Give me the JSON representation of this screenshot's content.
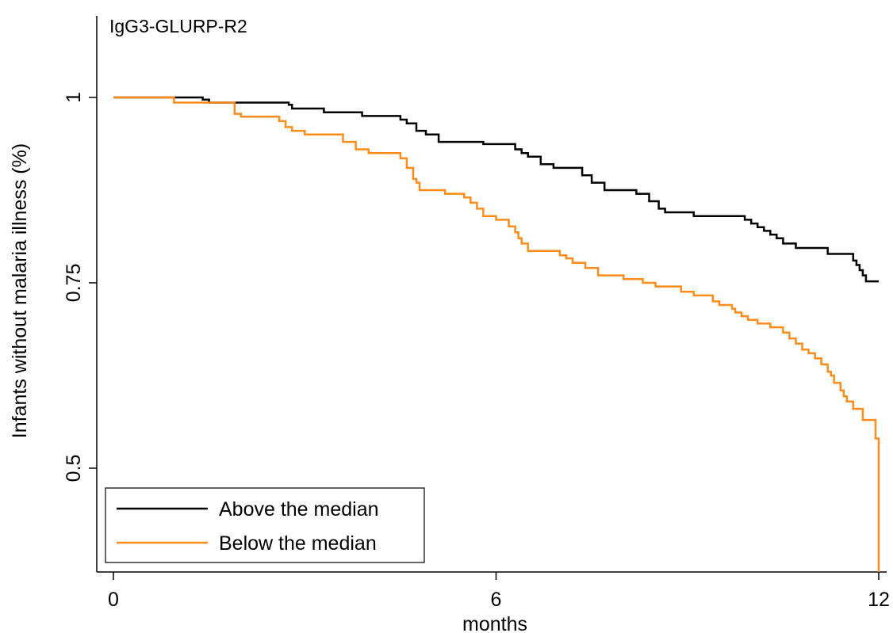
{
  "chart_data": {
    "type": "line",
    "step": true,
    "title": "IgG3-GLURP-R2",
    "xlabel": "months",
    "ylabel": "Infants without malaria illness (%)",
    "xlim": [
      0,
      12
    ],
    "ylim": [
      0.36,
      1.11
    ],
    "xticks": [
      0,
      6,
      12
    ],
    "xtick_labels": [
      "0",
      "6",
      "12"
    ],
    "yticks": [
      0.5,
      0.75,
      1
    ],
    "ytick_labels": [
      "0.5",
      "0.75",
      "1"
    ],
    "grid": false,
    "legend_position": "bottom-left",
    "series": [
      {
        "name": "Above the median",
        "color": "#000000",
        "x": [
          0,
          1.4,
          1.5,
          2.75,
          2.8,
          3.3,
          3.9,
          4.5,
          4.6,
          4.75,
          4.9,
          5.1,
          5.8,
          6.3,
          6.4,
          6.5,
          6.7,
          6.9,
          7.35,
          7.5,
          7.7,
          8.2,
          8.4,
          8.55,
          8.65,
          9.1,
          9.9,
          10.0,
          10.1,
          10.2,
          10.3,
          10.4,
          10.5,
          10.7,
          11.2,
          11.6,
          11.65,
          11.7,
          11.75,
          11.8,
          12.0
        ],
        "y": [
          1.0,
          0.997,
          0.993,
          0.99,
          0.985,
          0.98,
          0.975,
          0.97,
          0.965,
          0.955,
          0.95,
          0.94,
          0.937,
          0.93,
          0.925,
          0.92,
          0.91,
          0.905,
          0.895,
          0.885,
          0.875,
          0.87,
          0.86,
          0.85,
          0.845,
          0.84,
          0.835,
          0.83,
          0.825,
          0.82,
          0.815,
          0.81,
          0.803,
          0.797,
          0.789,
          0.78,
          0.774,
          0.767,
          0.76,
          0.752,
          0.752
        ]
      },
      {
        "name": "Below the median",
        "color": "#FF8C1A",
        "x": [
          0,
          0.95,
          1.9,
          2.0,
          2.6,
          2.7,
          2.8,
          3.0,
          3.6,
          3.8,
          4.0,
          4.5,
          4.6,
          4.7,
          4.75,
          4.8,
          5.2,
          5.5,
          5.6,
          5.7,
          5.8,
          6.0,
          6.2,
          6.3,
          6.35,
          6.4,
          6.5,
          7.0,
          7.1,
          7.2,
          7.4,
          7.6,
          8.0,
          8.3,
          8.5,
          8.9,
          9.1,
          9.4,
          9.5,
          9.7,
          9.75,
          9.85,
          9.95,
          10.1,
          10.3,
          10.5,
          10.6,
          10.7,
          10.8,
          10.9,
          11.0,
          11.1,
          11.2,
          11.25,
          11.3,
          11.4,
          11.45,
          11.5,
          11.6,
          11.75,
          11.95,
          12.0
        ],
        "y": [
          1.0,
          0.993,
          0.978,
          0.974,
          0.968,
          0.96,
          0.955,
          0.95,
          0.94,
          0.93,
          0.925,
          0.918,
          0.905,
          0.89,
          0.885,
          0.875,
          0.87,
          0.865,
          0.858,
          0.85,
          0.84,
          0.835,
          0.826,
          0.818,
          0.81,
          0.803,
          0.793,
          0.787,
          0.783,
          0.777,
          0.77,
          0.76,
          0.755,
          0.75,
          0.745,
          0.738,
          0.733,
          0.725,
          0.72,
          0.715,
          0.71,
          0.705,
          0.7,
          0.695,
          0.69,
          0.683,
          0.675,
          0.668,
          0.66,
          0.655,
          0.648,
          0.64,
          0.63,
          0.625,
          0.615,
          0.605,
          0.597,
          0.59,
          0.58,
          0.565,
          0.54,
          0.36
        ]
      }
    ]
  }
}
